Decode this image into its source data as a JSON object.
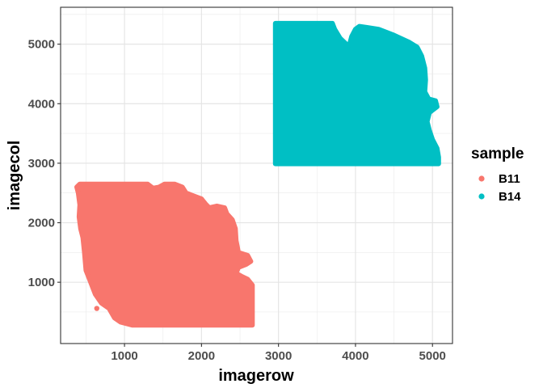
{
  "chart_data": {
    "type": "scatter",
    "title": "",
    "xlabel": "imagerow",
    "ylabel": "imagecol",
    "xlim": [
      170,
      5260
    ],
    "ylim": [
      -30,
      5620
    ],
    "x_ticks": [
      1000,
      2000,
      3000,
      4000,
      5000
    ],
    "y_ticks": [
      1000,
      2000,
      3000,
      4000,
      5000
    ],
    "x_tick_labels": [
      "1000",
      "2000",
      "3000",
      "4000",
      "5000"
    ],
    "y_tick_labels": [
      "1000",
      "2000",
      "3000",
      "4000",
      "5000"
    ],
    "grid": true,
    "legend": {
      "title": "sample",
      "position": "right"
    },
    "series": [
      {
        "name": "B11",
        "color": "#F8766D",
        "outline": [
          [
            420,
            2650
          ],
          [
            1300,
            2650
          ],
          [
            1370,
            2580
          ],
          [
            1450,
            2600
          ],
          [
            1520,
            2650
          ],
          [
            1650,
            2650
          ],
          [
            1750,
            2600
          ],
          [
            1800,
            2500
          ],
          [
            1900,
            2450
          ],
          [
            2000,
            2400
          ],
          [
            2050,
            2320
          ],
          [
            2100,
            2250
          ],
          [
            2200,
            2280
          ],
          [
            2300,
            2250
          ],
          [
            2330,
            2150
          ],
          [
            2400,
            2050
          ],
          [
            2440,
            1900
          ],
          [
            2450,
            1700
          ],
          [
            2480,
            1500
          ],
          [
            2600,
            1450
          ],
          [
            2640,
            1350
          ],
          [
            2580,
            1300
          ],
          [
            2480,
            1250
          ],
          [
            2450,
            1150
          ],
          [
            2520,
            1100
          ],
          [
            2600,
            1050
          ],
          [
            2660,
            950
          ],
          [
            2660,
            280
          ],
          [
            1100,
            280
          ],
          [
            950,
            330
          ],
          [
            870,
            400
          ],
          [
            800,
            560
          ],
          [
            700,
            650
          ],
          [
            620,
            800
          ],
          [
            560,
            1000
          ],
          [
            500,
            1200
          ],
          [
            480,
            1500
          ],
          [
            460,
            1750
          ],
          [
            430,
            1900
          ],
          [
            410,
            2100
          ],
          [
            420,
            2300
          ],
          [
            400,
            2500
          ],
          [
            380,
            2600
          ]
        ],
        "outlier": [
          [
            640,
            560
          ]
        ]
      },
      {
        "name": "B14",
        "color": "#00BFC4",
        "outline": [
          [
            2960,
            5350
          ],
          [
            3700,
            5350
          ],
          [
            3730,
            5250
          ],
          [
            3800,
            5100
          ],
          [
            3880,
            5000
          ],
          [
            3920,
            4980
          ],
          [
            3950,
            5130
          ],
          [
            4000,
            5250
          ],
          [
            4050,
            5300
          ],
          [
            4150,
            5280
          ],
          [
            4300,
            5250
          ],
          [
            4500,
            5150
          ],
          [
            4700,
            5030
          ],
          [
            4800,
            4950
          ],
          [
            4860,
            4800
          ],
          [
            4900,
            4600
          ],
          [
            4910,
            4400
          ],
          [
            4900,
            4200
          ],
          [
            4950,
            4080
          ],
          [
            5040,
            4050
          ],
          [
            5060,
            3950
          ],
          [
            4960,
            3850
          ],
          [
            4930,
            3700
          ],
          [
            4960,
            3550
          ],
          [
            5000,
            3400
          ],
          [
            5060,
            3250
          ],
          [
            5080,
            3100
          ],
          [
            5080,
            2990
          ],
          [
            2960,
            2990
          ]
        ],
        "outlier": []
      }
    ]
  }
}
